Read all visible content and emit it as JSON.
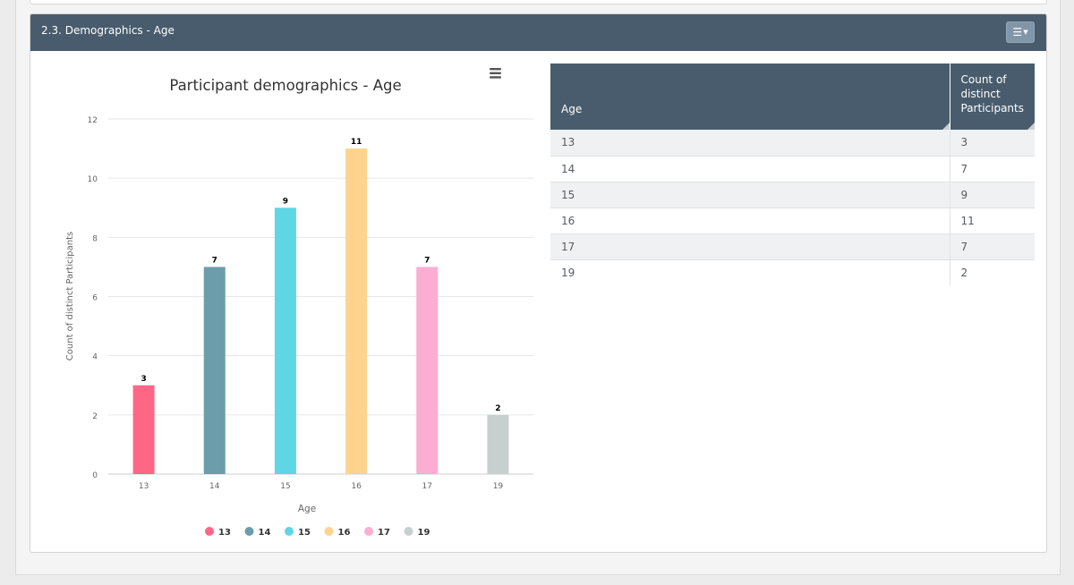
{
  "section": {
    "title": "2.3. Demographics - Age",
    "menu_icon": "hamburger-icon"
  },
  "chart_data": {
    "type": "bar",
    "title": "Participant demographics - Age",
    "xlabel": "Age",
    "ylabel": "Count of distinct Participants",
    "categories": [
      "13",
      "14",
      "15",
      "16",
      "17",
      "19"
    ],
    "values": [
      3,
      7,
      9,
      11,
      7,
      2
    ],
    "colors": [
      "#ff6685",
      "#6c9dab",
      "#5fd6e4",
      "#fdd38e",
      "#fbaed1",
      "#c7d0cf"
    ],
    "ylim": [
      0,
      12
    ],
    "yticks": [
      0,
      2,
      4,
      6,
      8,
      10,
      12
    ],
    "grid": true,
    "legend": "bottom",
    "data_labels": true,
    "menu_icon": "hamburger-icon"
  },
  "table": {
    "headers": [
      "Age",
      "Count of distinct Participants"
    ],
    "rows": [
      [
        "13",
        "3"
      ],
      [
        "14",
        "7"
      ],
      [
        "15",
        "9"
      ],
      [
        "16",
        "11"
      ],
      [
        "17",
        "7"
      ],
      [
        "19",
        "2"
      ]
    ]
  }
}
